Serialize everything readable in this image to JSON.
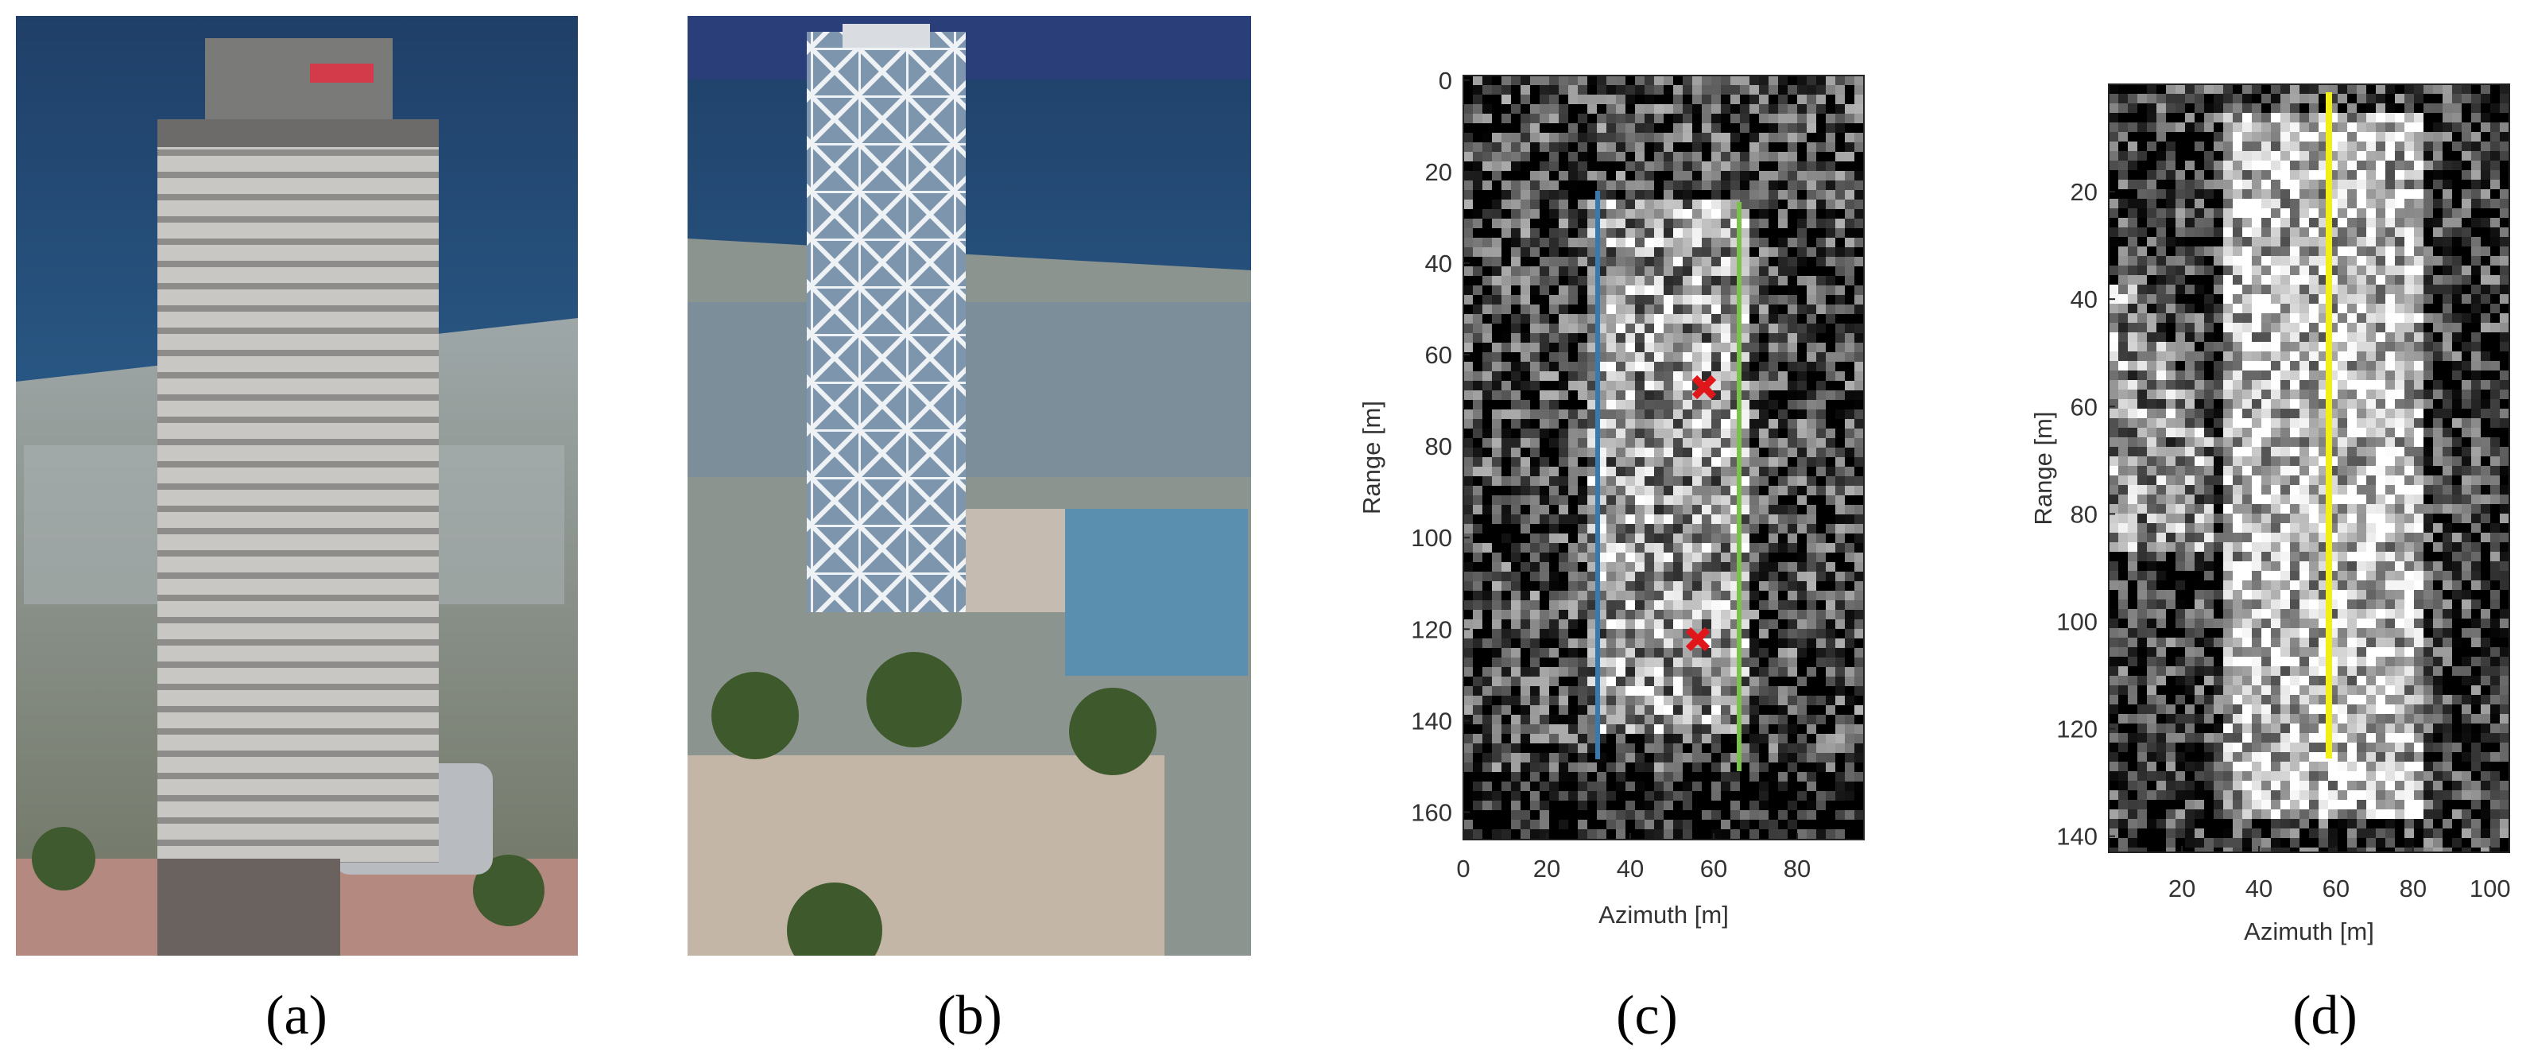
{
  "panels": [
    {
      "label": "(a)"
    },
    {
      "label": "(b)"
    },
    {
      "label": "(c)",
      "xlabel": "Azimuth [m]",
      "ylabel": "Range [m]",
      "xlim": [
        0,
        96
      ],
      "ylim": [
        -1,
        166
      ],
      "xticks": [
        0,
        20,
        40,
        60,
        80
      ],
      "yticks": [
        0,
        20,
        40,
        60,
        80,
        100,
        120,
        140,
        160
      ]
    },
    {
      "label": "(d)",
      "xlabel": "Azimuth [m]",
      "ylabel": "Range [m]",
      "xlim": [
        1,
        105
      ],
      "ylim": [
        0,
        143
      ],
      "xticks": [
        20,
        40,
        60,
        80,
        100
      ],
      "yticks": [
        20,
        40,
        60,
        80,
        100,
        120,
        140
      ]
    }
  ]
}
